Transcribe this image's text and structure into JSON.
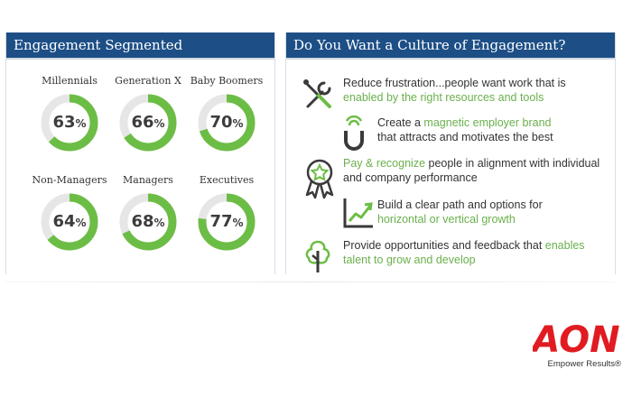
{
  "left_panel": {
    "title": "Engagement Segmented"
  },
  "right_panel": {
    "title": "Do You Want a Culture of Engagement?",
    "items": [
      {
        "icon": "wrench-screwdriver-icon",
        "pre": "Reduce frustration...people want work that is",
        "highlight": "enabled by the right resources and tools",
        "post": ""
      },
      {
        "icon": "magnet-icon",
        "pre": "Create a ",
        "highlight": "magnetic employer brand",
        "post": "that attracts and motivates the best"
      },
      {
        "icon": "award-ribbon-icon",
        "pre": "",
        "highlight": "Pay & recognize",
        "post": " people in alignment with individual and company performance"
      },
      {
        "icon": "growth-chart-icon",
        "pre": "Build a clear path and options for",
        "highlight": "horizontal or vertical growth",
        "post": ""
      },
      {
        "icon": "tree-icon",
        "pre": "Provide opportunities and feedback that ",
        "highlight": "enables",
        "post": "talent to grow and develop"
      }
    ]
  },
  "brand": {
    "logo_text": "AON",
    "tagline": "Empower Results®"
  },
  "colors": {
    "header_bg": "#1d4f86",
    "donut_fill": "#6cbd45",
    "donut_track": "#e6e6e6",
    "highlight": "#6ab04c",
    "brand_red": "#e11b22"
  },
  "chart_data": {
    "type": "donut",
    "unit": "%",
    "categories": [
      "Millennials",
      "Generation X",
      "Baby Boomers",
      "Non-Managers",
      "Managers",
      "Executives"
    ],
    "values": [
      63,
      66,
      70,
      64,
      68,
      77
    ],
    "labels": [
      "63",
      "66",
      "70",
      "64",
      "68",
      "77"
    ]
  }
}
